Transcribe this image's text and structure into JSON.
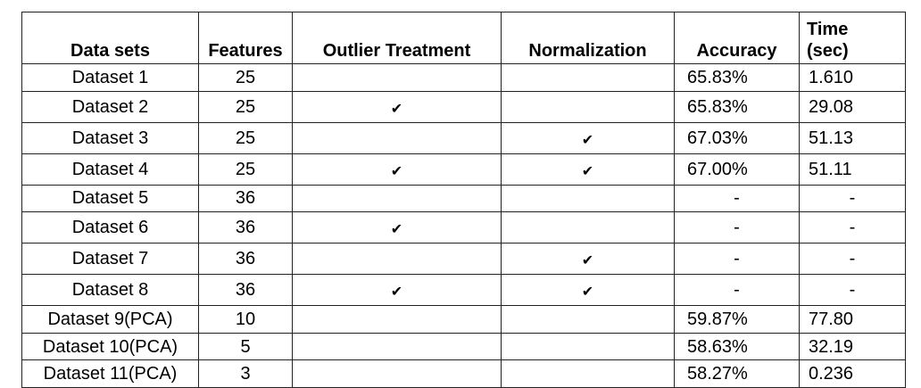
{
  "headers": {
    "dataset": "Data sets",
    "features": "Features",
    "outlier": "Outlier Treatment",
    "normalization": "Normalization",
    "accuracy": "Accuracy",
    "time_line1": "Time",
    "time_line2": "(sec)"
  },
  "check_glyph": "✔",
  "rows": [
    {
      "dataset": "Dataset 1",
      "features": "25",
      "outlier": false,
      "normalization": false,
      "accuracy": "65.83%",
      "time": "1.610"
    },
    {
      "dataset": "Dataset 2",
      "features": "25",
      "outlier": true,
      "normalization": false,
      "accuracy": "65.83%",
      "time": "29.08"
    },
    {
      "dataset": "Dataset 3",
      "features": "25",
      "outlier": false,
      "normalization": true,
      "accuracy": "67.03%",
      "time": "51.13"
    },
    {
      "dataset": "Dataset 4",
      "features": "25",
      "outlier": true,
      "normalization": true,
      "accuracy": "67.00%",
      "time": "51.11"
    },
    {
      "dataset": "Dataset 5",
      "features": "36",
      "outlier": false,
      "normalization": false,
      "accuracy": "-",
      "time": "-"
    },
    {
      "dataset": "Dataset 6",
      "features": "36",
      "outlier": true,
      "normalization": false,
      "accuracy": "-",
      "time": "-"
    },
    {
      "dataset": "Dataset 7",
      "features": "36",
      "outlier": false,
      "normalization": true,
      "accuracy": "-",
      "time": "-"
    },
    {
      "dataset": "Dataset 8",
      "features": "36",
      "outlier": true,
      "normalization": true,
      "accuracy": "-",
      "time": "-"
    },
    {
      "dataset": "Dataset 9(PCA)",
      "features": "10",
      "outlier": false,
      "normalization": false,
      "accuracy": "59.87%",
      "time": "77.80"
    },
    {
      "dataset": "Dataset 10(PCA)",
      "features": "5",
      "outlier": false,
      "normalization": false,
      "accuracy": "58.63%",
      "time": "32.19"
    },
    {
      "dataset": "Dataset 11(PCA)",
      "features": "3",
      "outlier": false,
      "normalization": false,
      "accuracy": "58.27%",
      "time": "0.236"
    }
  ]
}
